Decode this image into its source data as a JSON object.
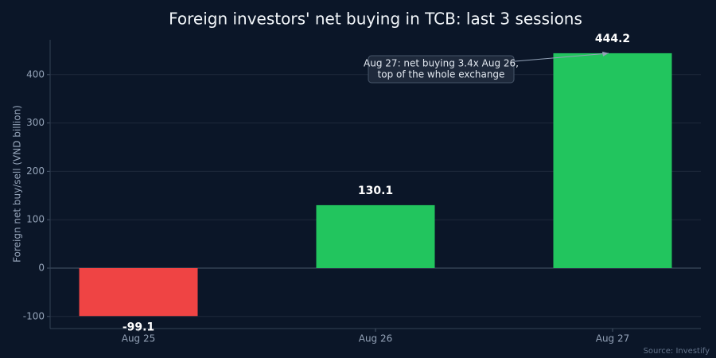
{
  "chart_data": {
    "type": "bar",
    "title": "Foreign investors' net buying in TCB: last 3 sessions",
    "y_label": "Foreign net buy/sell (VND billion)",
    "source": "Source: Investify",
    "categories": [
      "Aug 25",
      "Aug 26",
      "Aug 27"
    ],
    "values": [
      -99.1,
      130.1,
      444.2
    ],
    "colors": [
      "#ef4444",
      "#22c55e",
      "#22c55e"
    ],
    "ylim": [
      -125,
      472
    ],
    "yticks": [
      -100,
      0,
      100,
      200,
      300,
      400
    ],
    "grid": true,
    "annotation": {
      "lines": [
        "Aug 27: net buying 3.4x Aug 26,",
        "top of the whole exchange"
      ]
    }
  }
}
